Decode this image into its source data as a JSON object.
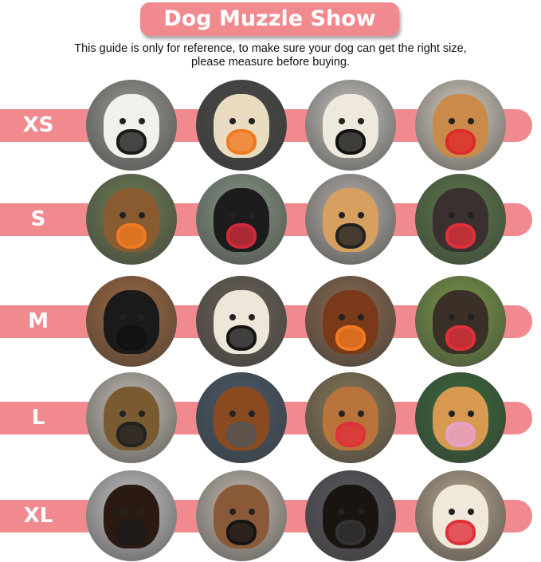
{
  "title": "Dog Muzzle Show",
  "subtitle_line1": "This guide is only for reference, to make sure your dog can get the right size,",
  "subtitle_line2": "please measure before buying.",
  "accent_color": "#f08a8f",
  "rows": [
    {
      "size": "XS",
      "photos": [
        {
          "bg": "#9a9a95",
          "fur": "#f2f0ea",
          "muzzle": "#1a1a1a"
        },
        {
          "bg": "#4a4a48",
          "fur": "#eadcc0",
          "muzzle": "#f07a20"
        },
        {
          "bg": "#c9c6c0",
          "fur": "#efe9dd",
          "muzzle": "#111111"
        },
        {
          "bg": "#d9d2c4",
          "fur": "#c98a4a",
          "muzzle": "#e02a2a"
        }
      ]
    },
    {
      "size": "S",
      "photos": [
        {
          "bg": "#6e7f55",
          "fur": "#8a5a30",
          "muzzle": "#f07a20"
        },
        {
          "bg": "#8a9a8a",
          "fur": "#1c1c1c",
          "muzzle": "#d02a3a"
        },
        {
          "bg": "#b8b4ae",
          "fur": "#d7a060",
          "muzzle": "#222222"
        },
        {
          "bg": "#5c7a4a",
          "fur": "#3a3030",
          "muzzle": "#e0303a"
        }
      ]
    },
    {
      "size": "M",
      "photos": [
        {
          "bg": "#a06a40",
          "fur": "#1a1a1a",
          "muzzle": "#111111"
        },
        {
          "bg": "#6a6258",
          "fur": "#efe6da",
          "muzzle": "#151515"
        },
        {
          "bg": "#8a6a50",
          "fur": "#7a3a1a",
          "muzzle": "#f07a20"
        },
        {
          "bg": "#7a9a4a",
          "fur": "#3a3028",
          "muzzle": "#e0303a"
        }
      ]
    },
    {
      "size": "L",
      "photos": [
        {
          "bg": "#c8c2b8",
          "fur": "#7a5a30",
          "muzzle": "#222222"
        },
        {
          "bg": "#4a5a6a",
          "fur": "#8a4a20",
          "muzzle": "#555555"
        },
        {
          "bg": "#8a7a5a",
          "fur": "#b8743a",
          "muzzle": "#e0303a"
        },
        {
          "bg": "#3a6a3a",
          "fur": "#d89a50",
          "muzzle": "#e8a0c8"
        }
      ]
    },
    {
      "size": "XL",
      "photos": [
        {
          "bg": "#c8c8c8",
          "fur": "#2a1a12",
          "muzzle": "#1a1a1a"
        },
        {
          "bg": "#c8c0b4",
          "fur": "#8a5a38",
          "muzzle": "#151515"
        },
        {
          "bg": "#5a5a60",
          "fur": "#1a1410",
          "muzzle": "#333333"
        },
        {
          "bg": "#b8a890",
          "fur": "#f0e8d8",
          "muzzle": "#e0303a"
        }
      ]
    }
  ]
}
